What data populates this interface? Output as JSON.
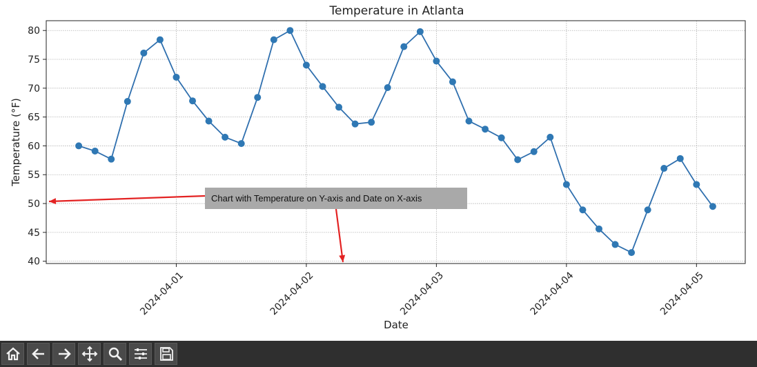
{
  "chart_data": {
    "type": "line",
    "title": "Temperature in Atlanta",
    "xlabel": "Date",
    "ylabel": "Temperature (°F)",
    "x": [
      "2024-03-31 06:00",
      "2024-03-31 09:00",
      "2024-03-31 12:00",
      "2024-03-31 15:00",
      "2024-03-31 18:00",
      "2024-03-31 21:00",
      "2024-04-01 00:00",
      "2024-04-01 03:00",
      "2024-04-01 06:00",
      "2024-04-01 09:00",
      "2024-04-01 12:00",
      "2024-04-01 15:00",
      "2024-04-01 18:00",
      "2024-04-01 21:00",
      "2024-04-02 00:00",
      "2024-04-02 03:00",
      "2024-04-02 06:00",
      "2024-04-02 09:00",
      "2024-04-02 12:00",
      "2024-04-02 15:00",
      "2024-04-02 18:00",
      "2024-04-02 21:00",
      "2024-04-03 00:00",
      "2024-04-03 03:00",
      "2024-04-03 06:00",
      "2024-04-03 09:00",
      "2024-04-03 12:00",
      "2024-04-03 15:00",
      "2024-04-03 18:00",
      "2024-04-03 21:00",
      "2024-04-04 00:00",
      "2024-04-04 03:00",
      "2024-04-04 06:00",
      "2024-04-04 09:00",
      "2024-04-04 12:00",
      "2024-04-04 15:00",
      "2024-04-04 18:00",
      "2024-04-04 21:00",
      "2024-04-05 00:00",
      "2024-04-05 03:00"
    ],
    "series": [
      {
        "values": [
          60.0,
          59.1,
          57.7,
          67.7,
          76.1,
          78.4,
          71.9,
          67.8,
          64.3,
          61.5,
          60.4,
          68.4,
          78.4,
          80.0,
          74.0,
          70.3,
          66.7,
          63.8,
          64.1,
          70.1,
          77.2,
          79.8,
          74.7,
          71.1,
          64.3,
          62.9,
          61.4,
          57.6,
          59.0,
          61.5,
          53.3,
          48.9,
          45.6,
          42.9,
          41.5,
          48.9,
          56.1,
          57.8,
          53.3,
          49.5
        ]
      }
    ],
    "xticks": [
      "2024-04-01",
      "2024-04-02",
      "2024-04-03",
      "2024-04-04",
      "2024-04-05"
    ],
    "yticks": [
      40,
      45,
      50,
      55,
      60,
      65,
      70,
      75,
      80
    ],
    "xlim": [
      "2024-03-31 00:00",
      "2024-04-05 09:00"
    ],
    "ylim": [
      39.6,
      81.7
    ],
    "grid": true,
    "line_color": "#2f6fae",
    "marker_color": "#2f78b4",
    "annotation": {
      "text": "Chart with Temperature on Y-axis and Date on X-axis",
      "box_color": "#a9a9a9",
      "arrow_color": "#e32222",
      "arrow_targets": [
        "y-axis",
        "x-axis"
      ]
    }
  },
  "toolbar": {
    "buttons": [
      {
        "name": "home-button",
        "icon": "home-icon"
      },
      {
        "name": "back-button",
        "icon": "arrow-left-icon"
      },
      {
        "name": "forward-button",
        "icon": "arrow-right-icon"
      },
      {
        "name": "pan-button",
        "icon": "move-icon"
      },
      {
        "name": "zoom-button",
        "icon": "magnifier-icon"
      },
      {
        "name": "configure-subplots-button",
        "icon": "sliders-icon"
      },
      {
        "name": "save-button",
        "icon": "floppy-disk-icon"
      }
    ]
  }
}
